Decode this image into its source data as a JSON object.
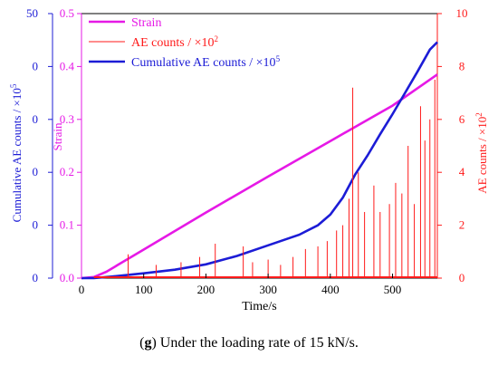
{
  "chart_data": {
    "type": "line",
    "xlabel": "Time/s",
    "x_ticks": [
      "0",
      "100",
      "200",
      "300",
      "400",
      "500"
    ],
    "xlim": [
      0,
      572
    ],
    "axes": {
      "cumulative": {
        "label": "Cumulative AE counts / ×10",
        "label_exp": "5",
        "color": "#1c1cd6",
        "ticks": [
          "0",
          "0",
          "0",
          "0",
          "0",
          "50"
        ]
      },
      "strain": {
        "label": "Strain",
        "color": "#e619e6",
        "ylim": [
          0,
          0.5
        ],
        "ticks": [
          "0.0",
          "0.1",
          "0.2",
          "0.3",
          "0.4",
          "0.5"
        ]
      },
      "ae_counts": {
        "label": "AE counts / ×10",
        "label_exp": "2",
        "color": "#ff1a1a",
        "ylim": [
          0,
          10
        ],
        "ticks": [
          "0",
          "2",
          "4",
          "6",
          "8",
          "10"
        ]
      }
    },
    "legend": {
      "position": "top-left",
      "entries": [
        {
          "label": "Strain",
          "color": "#e619e6"
        },
        {
          "label": "AE counts / ×10",
          "exp": "2",
          "color": "#ff1a1a"
        },
        {
          "label": "Cumulative AE counts / ×10",
          "exp": "5",
          "color": "#1c1cd6"
        }
      ]
    },
    "series": [
      {
        "name": "Strain",
        "axis": "strain",
        "color": "#e619e6",
        "x": [
          0,
          20,
          40,
          60,
          80,
          100,
          200,
          300,
          400,
          500,
          572
        ],
        "y": [
          0,
          0.002,
          0.012,
          0.026,
          0.04,
          0.054,
          0.124,
          0.192,
          0.259,
          0.326,
          0.385
        ]
      },
      {
        "name": "Cumulative AE counts / ×10^5",
        "axis": "strain",
        "color": "#1c1cd6",
        "x": [
          0,
          20,
          50,
          100,
          150,
          200,
          250,
          300,
          350,
          380,
          400,
          420,
          440,
          460,
          480,
          500,
          520,
          540,
          560,
          572
        ],
        "y": [
          0,
          0.0,
          0.003,
          0.009,
          0.016,
          0.026,
          0.042,
          0.062,
          0.082,
          0.1,
          0.12,
          0.152,
          0.196,
          0.232,
          0.272,
          0.31,
          0.35,
          0.39,
          0.432,
          0.446
        ]
      },
      {
        "name": "AE counts / ×10^2",
        "axis": "ae_counts",
        "color": "#ff1a1a",
        "type": "spikes",
        "x": [
          75,
          120,
          160,
          190,
          215,
          260,
          275,
          300,
          320,
          340,
          360,
          380,
          395,
          410,
          420,
          430,
          436,
          445,
          455,
          470,
          480,
          495,
          505,
          515,
          525,
          535,
          545,
          552,
          560,
          568
        ],
        "y": [
          0.9,
          0.5,
          0.6,
          0.8,
          1.3,
          1.2,
          0.6,
          0.7,
          0.5,
          0.8,
          1.1,
          1.2,
          1.4,
          1.8,
          2.0,
          3.0,
          7.2,
          4.0,
          2.5,
          3.5,
          2.5,
          2.8,
          3.6,
          3.2,
          5.0,
          2.8,
          6.5,
          5.2,
          6.0,
          7.5
        ]
      }
    ]
  },
  "caption": {
    "bold": "g",
    "text": " Under the loading rate of 15 kN/s."
  }
}
